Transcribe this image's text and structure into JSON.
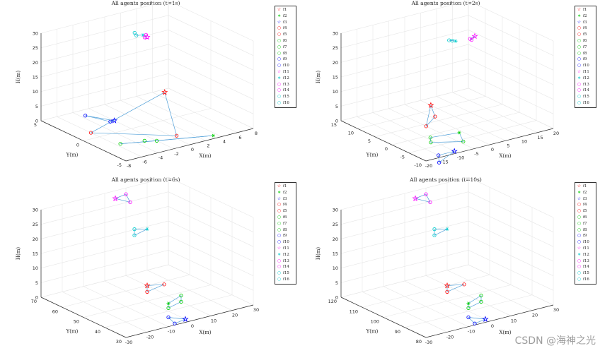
{
  "watermark": "CSDN @海神之光",
  "legend": {
    "labels": [
      "f1",
      "f2",
      "f3",
      "f4",
      "f5",
      "f6",
      "f7",
      "f8",
      "f9",
      "f10",
      "f11",
      "f12",
      "f13",
      "f14",
      "f15",
      "f16"
    ],
    "symbols": [
      "☆",
      "∗",
      "☆",
      "○",
      "○",
      "○",
      "○",
      "○",
      "○",
      "○",
      "☆",
      "∗",
      "○",
      "○",
      "○",
      "○"
    ]
  },
  "colors": {
    "f1": "#ff0000",
    "f2": "#00cc00",
    "f3": "#0000ff",
    "f4": "#ff0000",
    "f5": "#ff0000",
    "f6": "#00cc00",
    "f7": "#00cc00",
    "f8": "#00cc00",
    "f9": "#0000ff",
    "f10": "#0000ff",
    "f11": "#ff00ff",
    "f12": "#00cccc",
    "f13": "#ff00ff",
    "f14": "#ff00ff",
    "f15": "#00cccc",
    "f16": "#00cccc",
    "edge": "#4f9fd8",
    "grid": "#e6e6e6",
    "axis": "#262626"
  },
  "chart_data": [
    {
      "type": "scatter3d",
      "title": "All agents position (t=1s)",
      "xlabel": "X(m)",
      "ylabel": "Y(m)",
      "zlabel": "H(m)",
      "xlim": [
        -8,
        8
      ],
      "ylim": [
        -5,
        5
      ],
      "zlim": [
        0,
        30
      ],
      "xticks": [
        -8,
        -6,
        -4,
        -2,
        0,
        2,
        4,
        6,
        8
      ],
      "yticks": [
        -5,
        0,
        5
      ],
      "zticks": [
        0,
        5,
        10,
        15,
        20,
        25,
        30
      ],
      "agents": [
        {
          "name": "f1",
          "x": 7,
          "y": 4.5,
          "z": 0
        },
        {
          "name": "f2",
          "x": 3.5,
          "y": -4.5,
          "z": 0
        },
        {
          "name": "f3",
          "x": -2,
          "y": 2,
          "z": 0
        },
        {
          "name": "f4",
          "x": -6,
          "y": 1,
          "z": 0
        },
        {
          "name": "f5",
          "x": 0.5,
          "y": -3,
          "z": 0
        },
        {
          "name": "f6",
          "x": -2,
          "y": -3,
          "z": 0
        },
        {
          "name": "f7",
          "x": -5.5,
          "y": -2,
          "z": 0
        },
        {
          "name": "f8",
          "x": -3,
          "y": -2.5,
          "z": 0
        },
        {
          "name": "f9",
          "x": -3.5,
          "y": 4,
          "z": 0
        },
        {
          "name": "f10",
          "x": -2.5,
          "y": 2,
          "z": 0
        },
        {
          "name": "f11",
          "x": 0,
          "y": 0,
          "z": 30
        },
        {
          "name": "f12",
          "x": 0,
          "y": 0.5,
          "z": 30
        },
        {
          "name": "f13",
          "x": 0,
          "y": 0.3,
          "z": 29.5
        },
        {
          "name": "f14",
          "x": 0.5,
          "y": 0.6,
          "z": 29.6
        },
        {
          "name": "f15",
          "x": -0.5,
          "y": 0.8,
          "z": 29.8
        },
        {
          "name": "f16",
          "x": -0.3,
          "y": 1.2,
          "z": 30
        }
      ],
      "links": [
        [
          "f1",
          "f4"
        ],
        [
          "f1",
          "f5"
        ],
        [
          "f4",
          "f5"
        ],
        [
          "f2",
          "f6"
        ],
        [
          "f2",
          "f7"
        ],
        [
          "f6",
          "f7"
        ],
        [
          "f3",
          "f9"
        ],
        [
          "f3",
          "f10"
        ],
        [
          "f9",
          "f10"
        ],
        [
          "f11",
          "f13"
        ],
        [
          "f13",
          "f14"
        ],
        [
          "f12",
          "f15"
        ],
        [
          "f15",
          "f16"
        ]
      ]
    },
    {
      "type": "scatter3d",
      "title": "All agents position (t=2s)",
      "xlabel": "X(m)",
      "ylabel": "Y(m)",
      "zlabel": "H(m)",
      "xlim": [
        -20,
        20
      ],
      "ylim": [
        -10,
        15
      ],
      "zlim": [
        0,
        30
      ],
      "xticks": [
        -20,
        -15,
        -10,
        -5,
        0,
        5,
        10,
        15,
        20
      ],
      "yticks": [
        -10,
        -5,
        0,
        5,
        10,
        15
      ],
      "zticks": [
        0,
        5,
        10,
        15,
        20,
        25,
        30
      ],
      "agents": [
        {
          "name": "f1",
          "x": 5,
          "y": 12,
          "z": 0
        },
        {
          "name": "f2",
          "x": -1,
          "y": -2,
          "z": 0
        },
        {
          "name": "f3",
          "x": -10,
          "y": -9,
          "z": 0
        },
        {
          "name": "f4",
          "x": -5,
          "y": 4,
          "z": 0
        },
        {
          "name": "f5",
          "x": 1,
          "y": 7,
          "z": 0
        },
        {
          "name": "f6",
          "x": -9,
          "y": -1,
          "z": 0
        },
        {
          "name": "f7",
          "x": -11,
          "y": -3,
          "z": 0
        },
        {
          "name": "f8",
          "x": -4,
          "y": -6,
          "z": 0
        },
        {
          "name": "f9",
          "x": -15,
          "y": -9,
          "z": 0
        },
        {
          "name": "f10",
          "x": -18,
          "y": -12,
          "z": 0
        },
        {
          "name": "f11",
          "x": 6,
          "y": 0,
          "z": 30
        },
        {
          "name": "f12",
          "x": 0,
          "y": 0,
          "z": 30
        },
        {
          "name": "f13",
          "x": 5,
          "y": 0,
          "z": 29
        },
        {
          "name": "f14",
          "x": 4.5,
          "y": 0,
          "z": 29.5
        },
        {
          "name": "f15",
          "x": -0.5,
          "y": 0.5,
          "z": 30
        },
        {
          "name": "f16",
          "x": -1,
          "y": 1,
          "z": 30
        }
      ],
      "links": [
        [
          "f1",
          "f4"
        ],
        [
          "f1",
          "f5"
        ],
        [
          "f4",
          "f5"
        ],
        [
          "f2",
          "f6"
        ],
        [
          "f2",
          "f8"
        ],
        [
          "f6",
          "f7"
        ],
        [
          "f7",
          "f8"
        ],
        [
          "f3",
          "f9"
        ],
        [
          "f3",
          "f10"
        ],
        [
          "f9",
          "f10"
        ],
        [
          "f11",
          "f13"
        ],
        [
          "f13",
          "f14"
        ],
        [
          "f11",
          "f14"
        ],
        [
          "f12",
          "f15"
        ],
        [
          "f15",
          "f16"
        ],
        [
          "f12",
          "f16"
        ]
      ]
    },
    {
      "type": "scatter3d",
      "title": "All agents position (t=6s)",
      "xlabel": "X(m)",
      "ylabel": "Y(m)",
      "zlabel": "H(m)",
      "xlim": [
        -30,
        30
      ],
      "ylim": [
        30,
        70
      ],
      "zlim": [
        0,
        30
      ],
      "xticks": [
        -30,
        -20,
        -10,
        0,
        10,
        20,
        30
      ],
      "yticks": [
        30,
        40,
        50,
        60,
        70
      ],
      "zticks": [
        0,
        5,
        10,
        15,
        20,
        25,
        30
      ],
      "agents": [
        {
          "name": "f1",
          "x": 10,
          "y": 60,
          "z": 0
        },
        {
          "name": "f2",
          "x": 5,
          "y": 45,
          "z": 0
        },
        {
          "name": "f3",
          "x": 0,
          "y": 32,
          "z": 0
        },
        {
          "name": "f4",
          "x": 6,
          "y": 56,
          "z": 0
        },
        {
          "name": "f5",
          "x": 16,
          "y": 58,
          "z": 0
        },
        {
          "name": "f6",
          "x": 2,
          "y": 42,
          "z": 0
        },
        {
          "name": "f7",
          "x": 10,
          "y": 44,
          "z": 0
        },
        {
          "name": "f8",
          "x": 14,
          "y": 48,
          "z": 0
        },
        {
          "name": "f9",
          "x": -6,
          "y": 31,
          "z": 0
        },
        {
          "name": "f10",
          "x": -4,
          "y": 36,
          "z": 0
        },
        {
          "name": "f11",
          "x": 0,
          "y": 65,
          "z": 30
        },
        {
          "name": "f12",
          "x": -10,
          "y": 40,
          "z": 30
        },
        {
          "name": "f13",
          "x": 4,
          "y": 62,
          "z": 29
        },
        {
          "name": "f14",
          "x": 6,
          "y": 66,
          "z": 30
        },
        {
          "name": "f15",
          "x": -14,
          "y": 42,
          "z": 30
        },
        {
          "name": "f16",
          "x": -18,
          "y": 38,
          "z": 30
        }
      ],
      "links": [
        [
          "f1",
          "f4"
        ],
        [
          "f1",
          "f5"
        ],
        [
          "f4",
          "f5"
        ],
        [
          "f2",
          "f6"
        ],
        [
          "f2",
          "f8"
        ],
        [
          "f6",
          "f7"
        ],
        [
          "f7",
          "f8"
        ],
        [
          "f3",
          "f9"
        ],
        [
          "f3",
          "f10"
        ],
        [
          "f9",
          "f10"
        ],
        [
          "f11",
          "f13"
        ],
        [
          "f13",
          "f14"
        ],
        [
          "f11",
          "f14"
        ],
        [
          "f12",
          "f15"
        ],
        [
          "f15",
          "f16"
        ],
        [
          "f12",
          "f16"
        ]
      ]
    },
    {
      "type": "scatter3d",
      "title": "All agents position (t=10s)",
      "xlabel": "X(m)",
      "ylabel": "Y(m)",
      "zlabel": "H(m)",
      "xlim": [
        -30,
        30
      ],
      "ylim": [
        80,
        120
      ],
      "zlim": [
        0,
        30
      ],
      "xticks": [
        -30,
        -20,
        -10,
        0,
        10,
        20,
        30
      ],
      "yticks": [
        80,
        90,
        100,
        110,
        120
      ],
      "zticks": [
        0,
        5,
        10,
        15,
        20,
        25,
        30
      ],
      "agents": [
        {
          "name": "f1",
          "x": 10,
          "y": 110,
          "z": 0
        },
        {
          "name": "f2",
          "x": 5,
          "y": 95,
          "z": 0
        },
        {
          "name": "f3",
          "x": 0,
          "y": 82,
          "z": 0
        },
        {
          "name": "f4",
          "x": 6,
          "y": 106,
          "z": 0
        },
        {
          "name": "f5",
          "x": 16,
          "y": 108,
          "z": 0
        },
        {
          "name": "f6",
          "x": 2,
          "y": 92,
          "z": 0
        },
        {
          "name": "f7",
          "x": 10,
          "y": 94,
          "z": 0
        },
        {
          "name": "f8",
          "x": 14,
          "y": 98,
          "z": 0
        },
        {
          "name": "f9",
          "x": -6,
          "y": 81,
          "z": 0
        },
        {
          "name": "f10",
          "x": -4,
          "y": 86,
          "z": 0
        },
        {
          "name": "f11",
          "x": 0,
          "y": 115,
          "z": 30
        },
        {
          "name": "f12",
          "x": -10,
          "y": 90,
          "z": 30
        },
        {
          "name": "f13",
          "x": 4,
          "y": 112,
          "z": 29
        },
        {
          "name": "f14",
          "x": 6,
          "y": 116,
          "z": 30
        },
        {
          "name": "f15",
          "x": -14,
          "y": 92,
          "z": 30
        },
        {
          "name": "f16",
          "x": -18,
          "y": 88,
          "z": 30
        }
      ],
      "links": [
        [
          "f1",
          "f4"
        ],
        [
          "f1",
          "f5"
        ],
        [
          "f4",
          "f5"
        ],
        [
          "f2",
          "f6"
        ],
        [
          "f2",
          "f8"
        ],
        [
          "f6",
          "f7"
        ],
        [
          "f7",
          "f8"
        ],
        [
          "f3",
          "f9"
        ],
        [
          "f3",
          "f10"
        ],
        [
          "f9",
          "f10"
        ],
        [
          "f11",
          "f13"
        ],
        [
          "f13",
          "f14"
        ],
        [
          "f11",
          "f14"
        ],
        [
          "f12",
          "f15"
        ],
        [
          "f15",
          "f16"
        ],
        [
          "f12",
          "f16"
        ]
      ]
    }
  ]
}
